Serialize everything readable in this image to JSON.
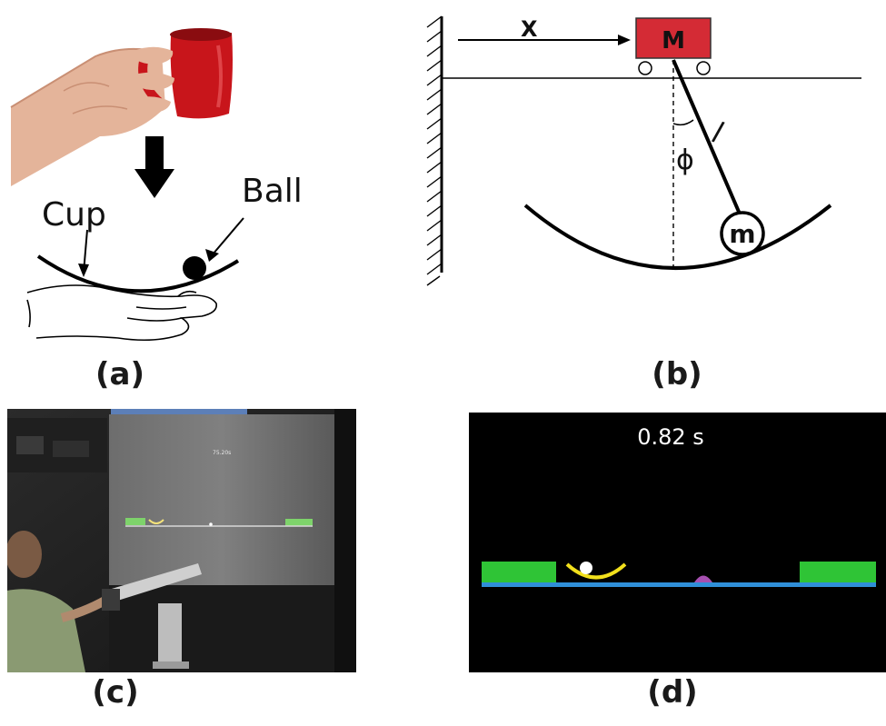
{
  "panel_a": {
    "cup_label": "Cup",
    "ball_label": "Ball",
    "caption": "(a)"
  },
  "panel_b": {
    "x_label": "X",
    "cart_label": "M",
    "length_label": "l",
    "angle_label": "ϕ",
    "mass_label": "m",
    "caption": "(b)"
  },
  "panel_c": {
    "screen_timer": "75.20s",
    "caption": "(c)"
  },
  "panel_d": {
    "timer": "0.82 s",
    "caption": "(d)",
    "colors": {
      "background": "#000000",
      "platform": "#2fc436",
      "floor": "#2f8fd8",
      "cup": "#f2e01c",
      "ball": "#ffffff",
      "target": "#a64fb0"
    }
  }
}
